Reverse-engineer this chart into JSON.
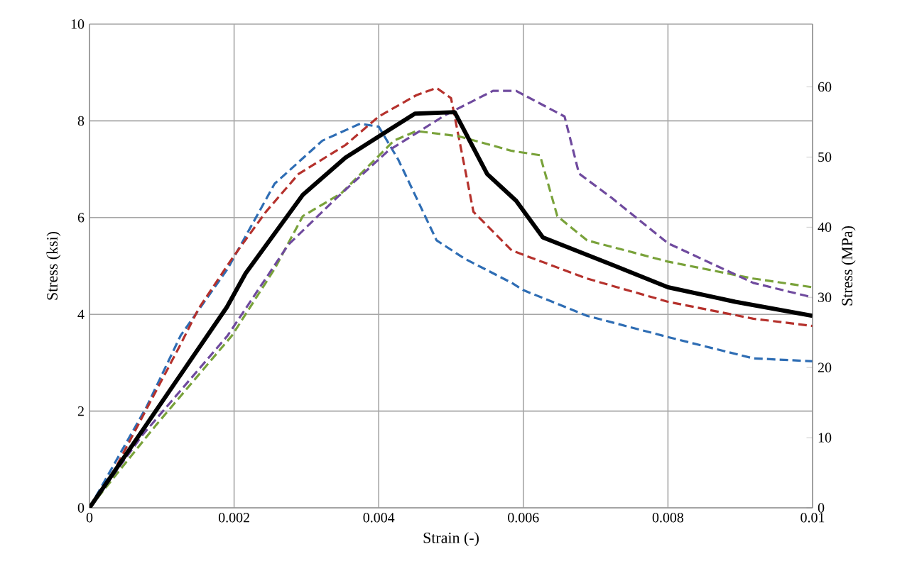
{
  "chart_data": {
    "type": "line",
    "xlabel": "Strain (-)",
    "ylabel": "Stress (ksi)",
    "y2label": "Stress (MPa)",
    "xlim": [
      0,
      0.01
    ],
    "xticks": [
      0,
      0.002,
      0.004,
      0.006,
      0.008,
      0.01
    ],
    "ylim": [
      0,
      10
    ],
    "yticks": [
      0,
      2,
      4,
      6,
      8,
      10
    ],
    "y2lim": [
      0,
      68.95
    ],
    "y2ticks": [
      0,
      10,
      20,
      30,
      40,
      50,
      60
    ],
    "grid": true,
    "marker": "none",
    "series": [
      {
        "color": "#2e6db4",
        "line_style": "dashed",
        "x": [
          0,
          0.00079,
          0.00126,
          0.00191,
          0.00256,
          0.00322,
          0.00374,
          0.004,
          0.00427,
          0.0048,
          0.00519,
          0.00584,
          0.006,
          0.00688,
          0.008,
          0.00918,
          0.01
        ],
        "values": [
          0,
          2.09,
          3.56,
          4.94,
          6.7,
          7.59,
          7.94,
          7.88,
          7.2,
          5.53,
          5.15,
          4.65,
          4.5,
          3.97,
          3.53,
          3.09,
          3.03
        ]
      },
      {
        "color": "#b5312c",
        "line_style": "dashed",
        "x": [
          0,
          0.00033,
          0.00126,
          0.00151,
          0.00197,
          0.00244,
          0.00289,
          0.00354,
          0.004,
          0.00452,
          0.0048,
          0.005,
          0.00531,
          0.00584,
          0.00688,
          0.008,
          0.00918,
          0.01
        ],
        "values": [
          0,
          0.74,
          3.38,
          4.12,
          5.15,
          6.12,
          6.9,
          7.5,
          8.09,
          8.53,
          8.68,
          8.47,
          6.12,
          5.32,
          4.74,
          4.26,
          3.91,
          3.76
        ]
      },
      {
        "color": "#79a23a",
        "line_style": "dashed",
        "x": [
          0,
          0.00092,
          0.00197,
          0.00256,
          0.00295,
          0.00348,
          0.00421,
          0.00452,
          0.00511,
          0.00584,
          0.00623,
          0.00647,
          0.00688,
          0.008,
          0.00918,
          0.01
        ],
        "values": [
          0,
          1.71,
          3.56,
          4.94,
          6.03,
          6.5,
          7.59,
          7.79,
          7.68,
          7.38,
          7.29,
          6.03,
          5.53,
          5.09,
          4.74,
          4.56
        ]
      },
      {
        "color": "#6f4a9e",
        "line_style": "dashed",
        "x": [
          0,
          0.00073,
          0.00191,
          0.00275,
          0.00342,
          0.00413,
          0.00492,
          0.00558,
          0.0059,
          0.00657,
          0.00677,
          0.00722,
          0.008,
          0.00918,
          0.01
        ],
        "values": [
          0,
          1.5,
          3.56,
          5.44,
          6.41,
          7.38,
          8.12,
          8.62,
          8.62,
          8.09,
          6.91,
          6.41,
          5.47,
          4.65,
          4.35
        ]
      },
      {
        "color": "#000000",
        "line_style": "solid",
        "x": [
          0,
          0.0019,
          0.00216,
          0.00295,
          0.00354,
          0.00413,
          0.0045,
          0.00505,
          0.0055,
          0.0059,
          0.00627,
          0.00722,
          0.008,
          0.00893,
          0.01
        ],
        "values": [
          0,
          4.15,
          4.85,
          6.47,
          7.24,
          7.8,
          8.15,
          8.18,
          6.9,
          6.35,
          5.59,
          5.03,
          4.56,
          4.26,
          3.97
        ]
      }
    ]
  }
}
